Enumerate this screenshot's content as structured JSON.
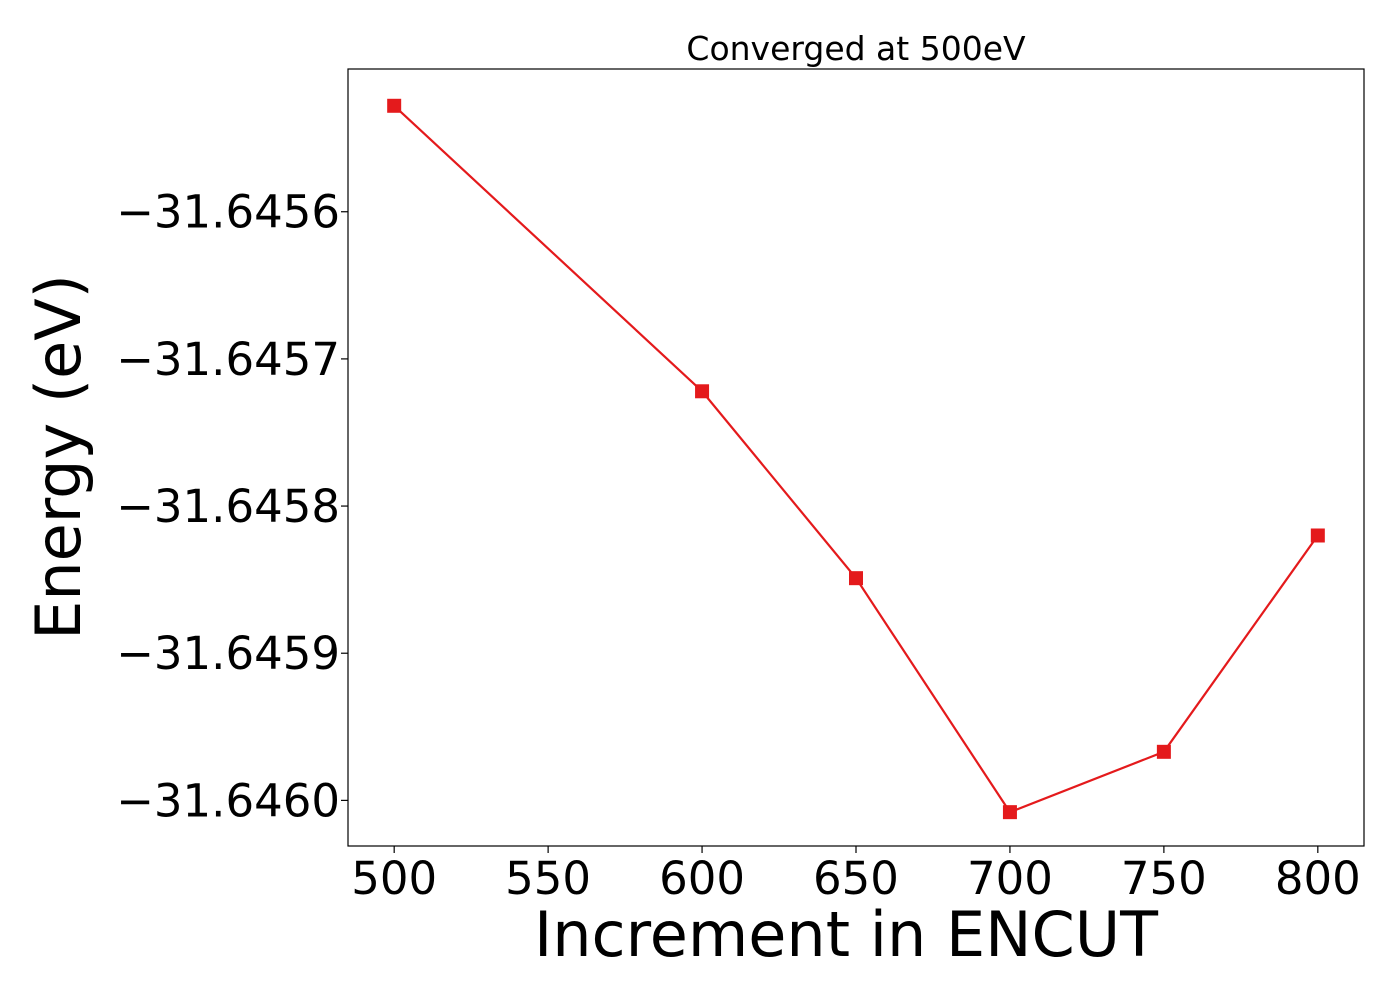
{
  "chart_data": {
    "type": "line",
    "title": "Converged at 500eV",
    "xlabel": "Increment in ENCUT",
    "ylabel": "Energy (eV)",
    "x": [
      500,
      600,
      650,
      700,
      750,
      800
    ],
    "series": [
      {
        "values": [
          -31.645528,
          -31.645722,
          -31.645849,
          -31.646008,
          -31.645967,
          -31.64582
        ],
        "color": "#e41a1c",
        "marker": "square"
      }
    ],
    "xlim": [
      485,
      815
    ],
    "ylim": [
      -31.646031,
      -31.645503
    ],
    "xticks": [
      500,
      550,
      600,
      650,
      700,
      750,
      800
    ],
    "xtick_labels": [
      "500",
      "550",
      "600",
      "650",
      "700",
      "750",
      "800"
    ],
    "yticks": [
      -31.6456,
      -31.6457,
      -31.6458,
      -31.6459,
      -31.646
    ],
    "ytick_labels": [
      "−31.6456",
      "−31.6457",
      "−31.6458",
      "−31.6459",
      "−31.6460"
    ],
    "grid": false,
    "legend": "none"
  }
}
